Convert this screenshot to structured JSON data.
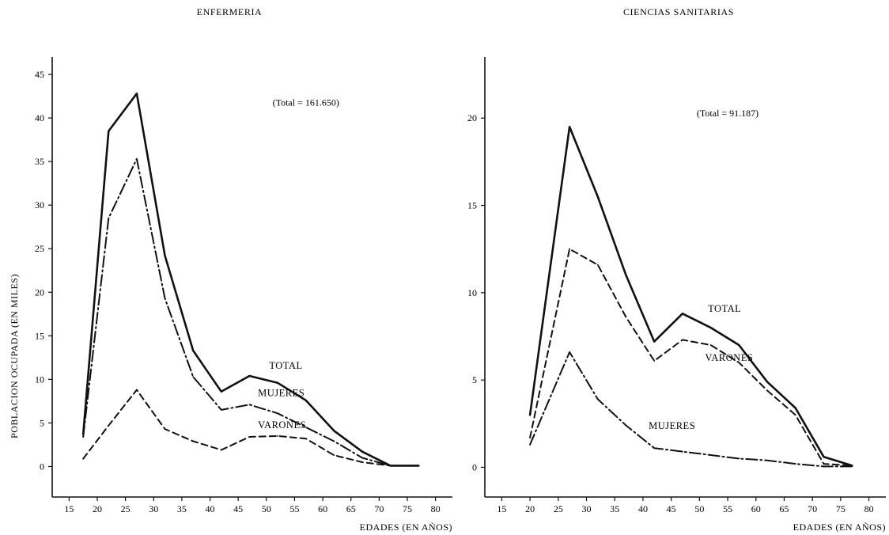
{
  "chart_data": [
    {
      "type": "line",
      "title": "ENFERMERIA",
      "xlabel": "EDADES (EN AÑOS)",
      "ylabel": "POBLACION OCUPADA (EN MILES)",
      "annotation": "(Total = 161.650)",
      "xlim": [
        12,
        83
      ],
      "ylim": [
        -3.5,
        47
      ],
      "xticks": [
        15,
        20,
        25,
        30,
        35,
        40,
        45,
        50,
        55,
        60,
        65,
        70,
        75,
        80
      ],
      "yticks": [
        0,
        5,
        10,
        15,
        20,
        25,
        30,
        35,
        40,
        45
      ],
      "grid": false,
      "series": [
        {
          "name": "TOTAL",
          "style": "solid",
          "x": [
            17.5,
            22,
            27,
            32,
            37,
            42,
            47,
            52,
            57,
            62,
            67,
            72,
            77
          ],
          "y": [
            3.7,
            38.5,
            42.8,
            24.2,
            13.3,
            8.6,
            10.4,
            9.6,
            7.6,
            4.1,
            1.7,
            0.1,
            0.1
          ]
        },
        {
          "name": "MUJERES",
          "style": "dashdot",
          "x": [
            17.5,
            22,
            27,
            32,
            37,
            42,
            47,
            52,
            57,
            62,
            67,
            72,
            77
          ],
          "y": [
            3.4,
            28.5,
            35.3,
            19.3,
            10.3,
            6.5,
            7.1,
            6.1,
            4.5,
            2.9,
            1.0,
            0.1,
            0.1
          ]
        },
        {
          "name": "VARONES",
          "style": "dashed",
          "x": [
            17.5,
            22,
            27,
            32,
            37,
            42,
            47,
            52,
            57,
            62,
            67,
            72,
            77
          ],
          "y": [
            0.9,
            4.7,
            8.8,
            4.3,
            2.9,
            1.9,
            3.4,
            3.5,
            3.2,
            1.3,
            0.5,
            0.1,
            0.1
          ]
        }
      ],
      "series_labels": [
        {
          "text": "TOTAL",
          "x": 50.5,
          "y": 11.2
        },
        {
          "text": "MUJERES",
          "x": 48.5,
          "y": 8.1
        },
        {
          "text": "VARONES",
          "x": 48.5,
          "y": 4.4
        }
      ],
      "annotation_at": {
        "x": 57,
        "y": 41.4
      }
    },
    {
      "type": "line",
      "title": "CIENCIAS SANITARIAS",
      "xlabel": "EDADES (EN AÑOS)",
      "ylabel": "",
      "annotation": "(Total = 91.187)",
      "xlim": [
        12,
        83
      ],
      "ylim": [
        -1.7,
        23.5
      ],
      "xticks": [
        15,
        20,
        25,
        30,
        35,
        40,
        45,
        50,
        55,
        60,
        65,
        70,
        75,
        80
      ],
      "yticks": [
        0,
        5,
        10,
        15,
        20
      ],
      "grid": false,
      "series": [
        {
          "name": "TOTAL",
          "style": "solid",
          "x": [
            20,
            27,
            32,
            37,
            42,
            47,
            52,
            57,
            62,
            67,
            72,
            77
          ],
          "y": [
            3.0,
            19.5,
            15.5,
            11.0,
            7.2,
            8.8,
            8.0,
            7.0,
            4.9,
            3.4,
            0.6,
            0.1
          ]
        },
        {
          "name": "VARONES",
          "style": "dashed",
          "x": [
            20,
            27,
            32,
            37,
            42,
            47,
            52,
            57,
            62,
            67,
            72,
            77
          ],
          "y": [
            1.7,
            12.5,
            11.6,
            8.6,
            6.1,
            7.3,
            7.0,
            6.0,
            4.4,
            3.0,
            0.2,
            0.1
          ]
        },
        {
          "name": "MUJERES",
          "style": "dashdot",
          "x": [
            20,
            27,
            32,
            37,
            42,
            47,
            52,
            57,
            62,
            67,
            72,
            77
          ],
          "y": [
            1.3,
            6.6,
            3.9,
            2.4,
            1.1,
            0.9,
            0.7,
            0.5,
            0.4,
            0.2,
            0.05,
            0.05
          ]
        }
      ],
      "series_labels": [
        {
          "text": "TOTAL",
          "x": 51.5,
          "y": 8.9
        },
        {
          "text": "VARONES",
          "x": 51,
          "y": 6.1
        },
        {
          "text": "MUJERES",
          "x": 41,
          "y": 2.2
        }
      ],
      "annotation_at": {
        "x": 55,
        "y": 20.1
      }
    }
  ]
}
